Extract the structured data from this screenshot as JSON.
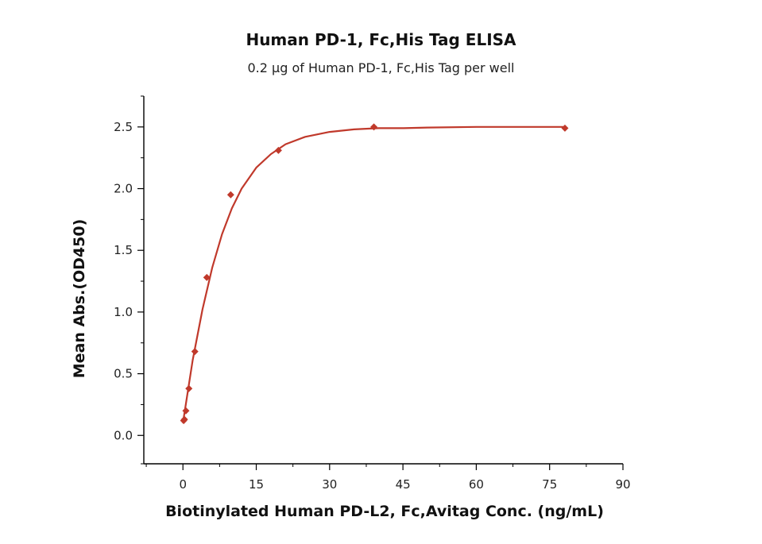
{
  "chart_data": {
    "type": "scatter",
    "title": "Human PD-1, Fc,His Tag ELISA",
    "subtitle": "0.2 µg of Human PD-1, Fc,His Tag per well",
    "xlabel": "Biotinylated Human PD-L2, Fc,Avitag Conc. (ng/mL)",
    "ylabel": "Mean Abs.(OD450)",
    "xlim": [
      -8,
      90
    ],
    "ylim": [
      -0.23,
      2.75
    ],
    "x_ticks": [
      0,
      15,
      30,
      45,
      60,
      75,
      90
    ],
    "x_tick_labels": [
      "0",
      "15",
      "30",
      "45",
      "60",
      "75",
      "90"
    ],
    "y_ticks": [
      0.0,
      0.5,
      1.0,
      1.5,
      2.0,
      2.5
    ],
    "y_tick_labels": [
      "0.0",
      "0.5",
      "1.0",
      "1.5",
      "2.0",
      "2.5"
    ],
    "grid": false,
    "color": "#c0392b",
    "series": [
      {
        "marker": "diamond",
        "x": [
          0.15,
          0.31,
          0.61,
          1.22,
          2.44,
          4.88,
          9.77,
          19.53,
          39.06,
          78.13
        ],
        "y": [
          0.12,
          0.13,
          0.2,
          0.38,
          0.68,
          1.28,
          1.95,
          2.31,
          2.5,
          2.49
        ],
        "fit": {
          "x": [
            0,
            2,
            4,
            6,
            8,
            10,
            12,
            15,
            18,
            21,
            25,
            30,
            35,
            40,
            45,
            50,
            60,
            70,
            78.13
          ],
          "y": [
            0.1,
            0.61,
            1.02,
            1.36,
            1.63,
            1.84,
            2.0,
            2.17,
            2.28,
            2.36,
            2.42,
            2.46,
            2.48,
            2.49,
            2.49,
            2.495,
            2.5,
            2.5,
            2.5
          ]
        }
      }
    ]
  }
}
